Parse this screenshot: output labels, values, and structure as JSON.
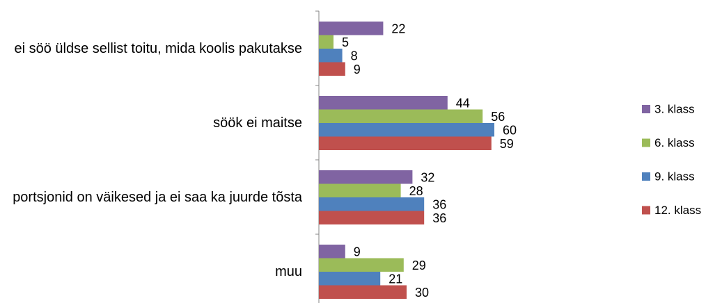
{
  "chart_data": {
    "type": "bar",
    "orientation": "horizontal",
    "categories": [
      "ei söö üldse sellist toitu, mida koolis pakutakse",
      "söök ei maitse",
      "portsjonid on väikesed ja ei saa ka juurde tõsta",
      "muu"
    ],
    "series": [
      {
        "name": "3. klass",
        "color": "#8064a2",
        "values": [
          22,
          44,
          32,
          9
        ]
      },
      {
        "name": "6. klass",
        "color": "#9bbb59",
        "values": [
          5,
          56,
          28,
          29
        ]
      },
      {
        "name": "9. klass",
        "color": "#4f81bd",
        "values": [
          8,
          60,
          36,
          21
        ]
      },
      {
        "name": "12. klass",
        "color": "#c0504d",
        "values": [
          9,
          59,
          36,
          30
        ]
      }
    ],
    "xlim": [
      0,
      100
    ],
    "legend": "right"
  }
}
